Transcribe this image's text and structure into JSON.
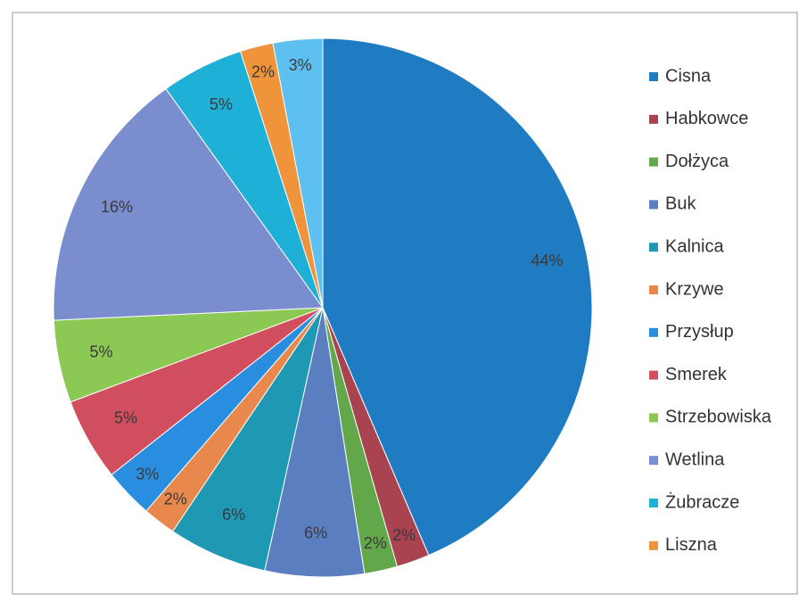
{
  "chart_data": {
    "type": "pie",
    "categories": [
      "Cisna",
      "Habkowce",
      "Dołżyca",
      "Buk",
      "Kalnica",
      "Krzywe",
      "Przysłup",
      "Smerek",
      "Strzebowiska",
      "Wetlina",
      "Żubracze",
      "Liszna",
      null
    ],
    "values": [
      44,
      2,
      2,
      6,
      6,
      2,
      3,
      5,
      5,
      16,
      5,
      2,
      3
    ],
    "value_labels": [
      "44%",
      "2%",
      "2%",
      "6%",
      "6%",
      "2%",
      "3%",
      "5%",
      "5%",
      "16%",
      "5%",
      "2%",
      "3%"
    ],
    "colors": [
      "#1f7cc2",
      "#a8434f",
      "#62a84a",
      "#5a7ec0",
      "#1e98b3",
      "#e8884c",
      "#2a8ee0",
      "#d04e5e",
      "#8cc854",
      "#7a8dcf",
      "#1fb0d8",
      "#f0943c",
      "#5ec0f0"
    ],
    "legend": "right"
  }
}
